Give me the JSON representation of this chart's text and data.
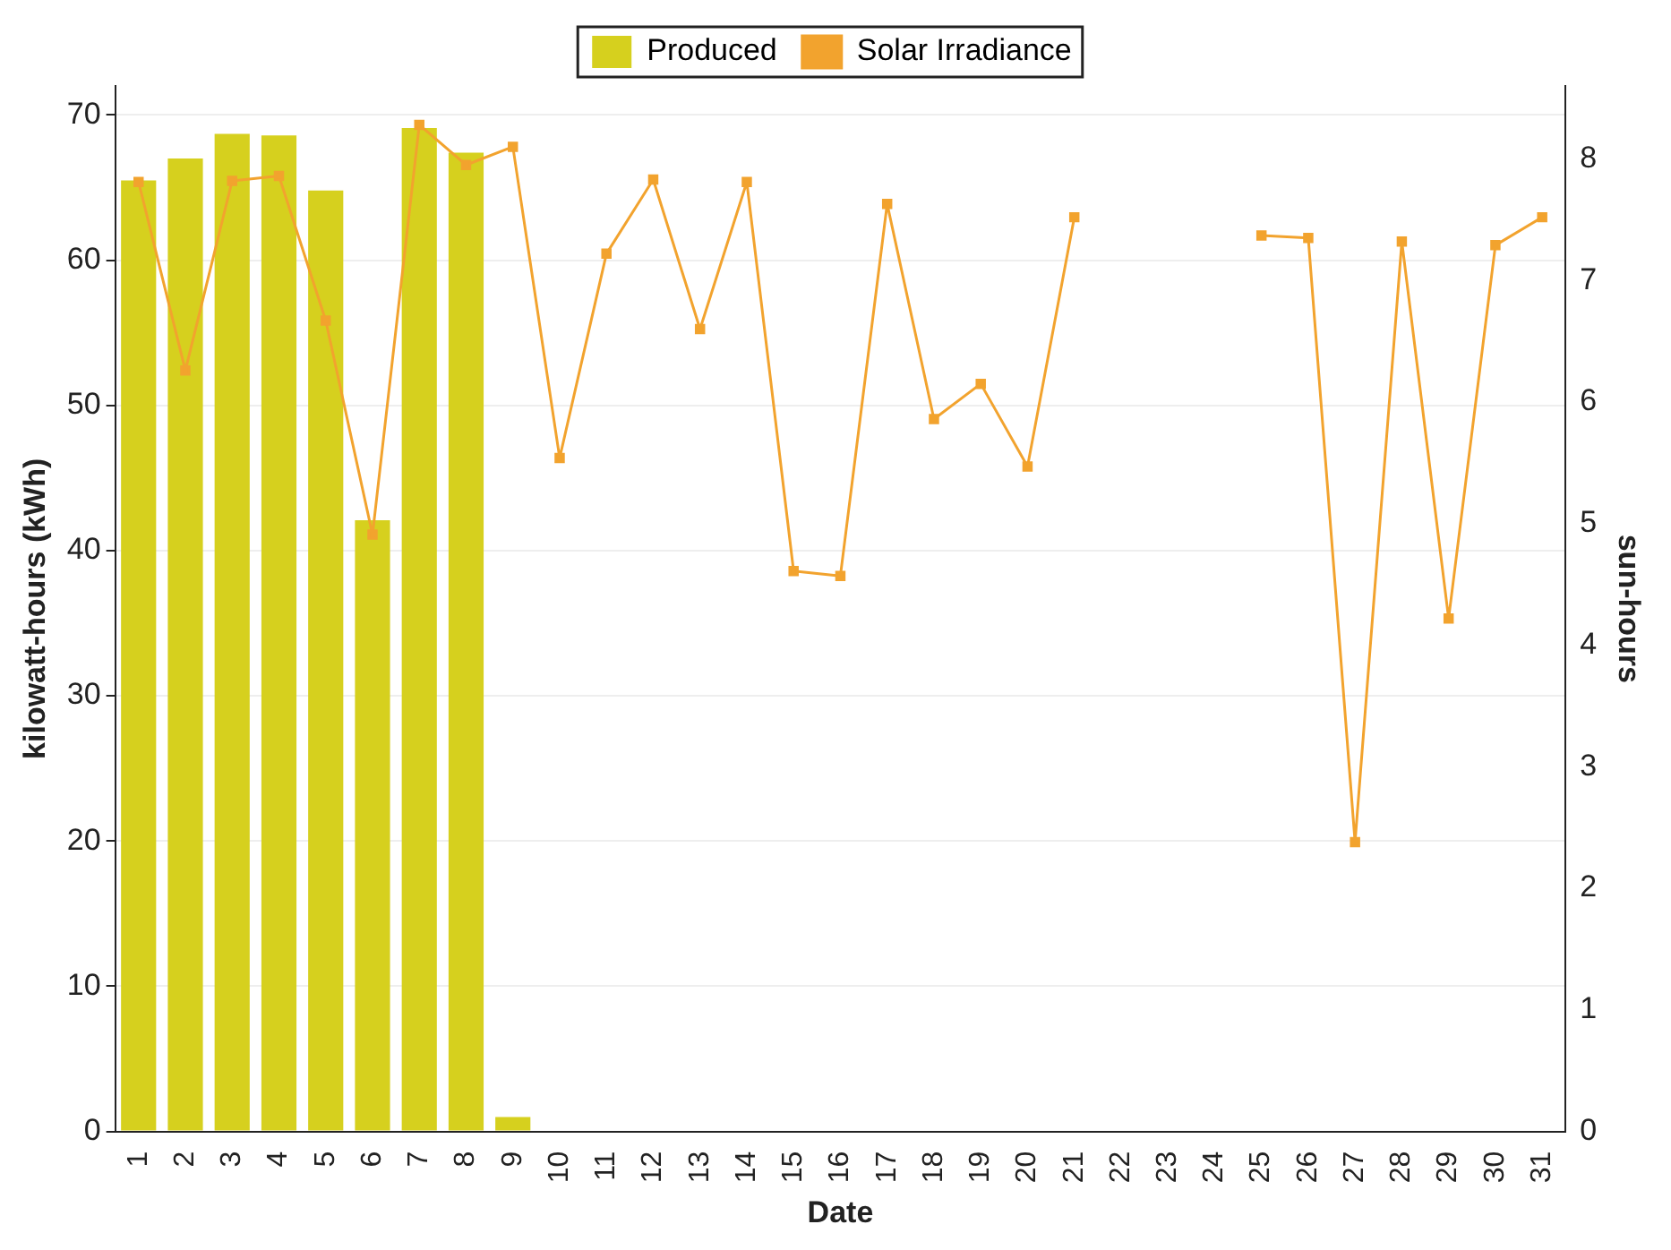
{
  "chart_data": {
    "type": "bar",
    "categories": [
      "1",
      "2",
      "3",
      "4",
      "5",
      "6",
      "7",
      "8",
      "9",
      "10",
      "11",
      "12",
      "13",
      "14",
      "15",
      "16",
      "17",
      "18",
      "19",
      "20",
      "21",
      "22",
      "23",
      "24",
      "25",
      "26",
      "27",
      "28",
      "29",
      "30",
      "31"
    ],
    "series": [
      {
        "name": "Produced",
        "color": "#d6d01e",
        "values": [
          65.5,
          67,
          68.7,
          68.6,
          64.8,
          42.1,
          69.1,
          67.4,
          1,
          null,
          null,
          null,
          null,
          null,
          null,
          null,
          null,
          null,
          null,
          null,
          null,
          null,
          null,
          null,
          null,
          null,
          null,
          null,
          null,
          null,
          null
        ]
      },
      {
        "name": "Solar Irradiance",
        "type": "line",
        "axis": "y2",
        "color": "#f2a32e",
        "marker": "square",
        "values": [
          7.81,
          6.26,
          7.82,
          7.86,
          6.67,
          4.91,
          8.28,
          7.95,
          8.1,
          5.54,
          7.22,
          7.83,
          6.6,
          7.81,
          4.61,
          4.57,
          7.63,
          5.86,
          6.15,
          5.47,
          7.52,
          null,
          null,
          null,
          7.37,
          7.35,
          2.38,
          7.32,
          4.22,
          7.29,
          7.52
        ]
      }
    ],
    "xlabel": "Date",
    "ylabel": "kilowatt-hours (kWh)",
    "y2label": "sun-hours",
    "ylim": [
      0,
      72
    ],
    "yticks": [
      0,
      10,
      20,
      30,
      40,
      50,
      60,
      70
    ],
    "y2lim": [
      0,
      8.6
    ],
    "y2ticks": [
      0,
      1,
      2,
      3,
      4,
      5,
      6,
      7,
      8
    ],
    "grid": "y",
    "legend": "top"
  }
}
